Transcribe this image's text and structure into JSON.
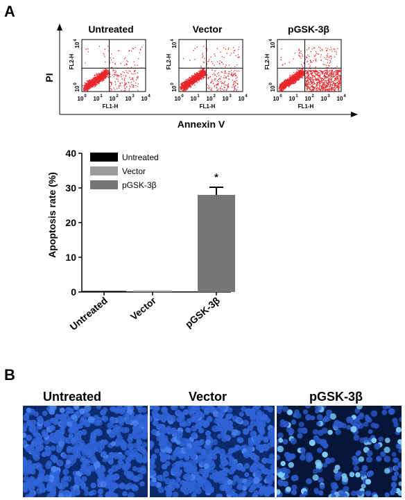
{
  "panel_a": {
    "letter": "A",
    "flow": {
      "y_axis_label": "PI",
      "x_axis_label": "Annexin V",
      "plots": [
        {
          "title": "Untreated",
          "ylabel": "FL2-H",
          "xlabel": "FL1-H",
          "ticks": [
            "10",
            "0",
            "10",
            "1",
            "10",
            "2",
            "10",
            "3",
            "10",
            "4"
          ]
        },
        {
          "title": "Vector",
          "ylabel": "FL2-H",
          "xlabel": "FL1-H"
        },
        {
          "title": "pGSK-3β",
          "ylabel": "FL2-H",
          "xlabel": "FL1-H"
        }
      ],
      "tick_exp": [
        "0",
        "1",
        "2",
        "3",
        "4"
      ],
      "tick_base": "10",
      "dot_color": "#e8262a"
    },
    "chart_data": {
      "type": "bar",
      "categories": [
        "Untreated",
        "Vector",
        "pGSK-3β"
      ],
      "values": [
        0.3,
        0.4,
        28
      ],
      "errors": [
        0.1,
        0.1,
        2.2
      ],
      "colors": [
        "#000000",
        "#9b9b9b",
        "#777777"
      ],
      "ylabel": "Apoptosis rate (%)",
      "ylim": [
        0,
        40
      ],
      "yticks": [
        "0",
        "10",
        "20",
        "30",
        "40"
      ],
      "legend": [
        "Untreated",
        "Vector",
        "pGSK-3β"
      ],
      "legend_placement": "top-left",
      "significance": "*"
    }
  },
  "panel_b": {
    "letter": "B",
    "images": [
      {
        "title": "Untreated"
      },
      {
        "title": "Vector"
      },
      {
        "title": "pGSK-3β"
      }
    ]
  }
}
